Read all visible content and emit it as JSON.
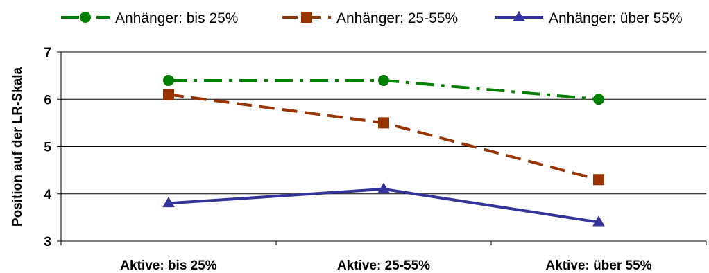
{
  "chart_data": {
    "type": "line",
    "categories": [
      "Aktive: bis 25%",
      "Aktive: 25-55%",
      "Aktive: über 55%"
    ],
    "series": [
      {
        "name": "Anhänger: bis 25%",
        "values": [
          6.4,
          6.4,
          6.0
        ],
        "color": "#008000",
        "marker": "circle",
        "dash": "dash-dot"
      },
      {
        "name": "Anhänger: 25-55%",
        "values": [
          6.1,
          5.5,
          4.3
        ],
        "color": "#993300",
        "marker": "square",
        "dash": "dash"
      },
      {
        "name": "Anhänger: über 55%",
        "values": [
          3.8,
          4.1,
          3.4
        ],
        "color": "#333399",
        "marker": "triangle",
        "dash": "solid"
      }
    ],
    "title": "",
    "xlabel": "",
    "ylabel": "Position auf der LR-Skala",
    "ylim": [
      3,
      7
    ],
    "yticks": [
      "3",
      "4",
      "5",
      "6",
      "7"
    ],
    "grid": true,
    "legend_position": "top"
  }
}
